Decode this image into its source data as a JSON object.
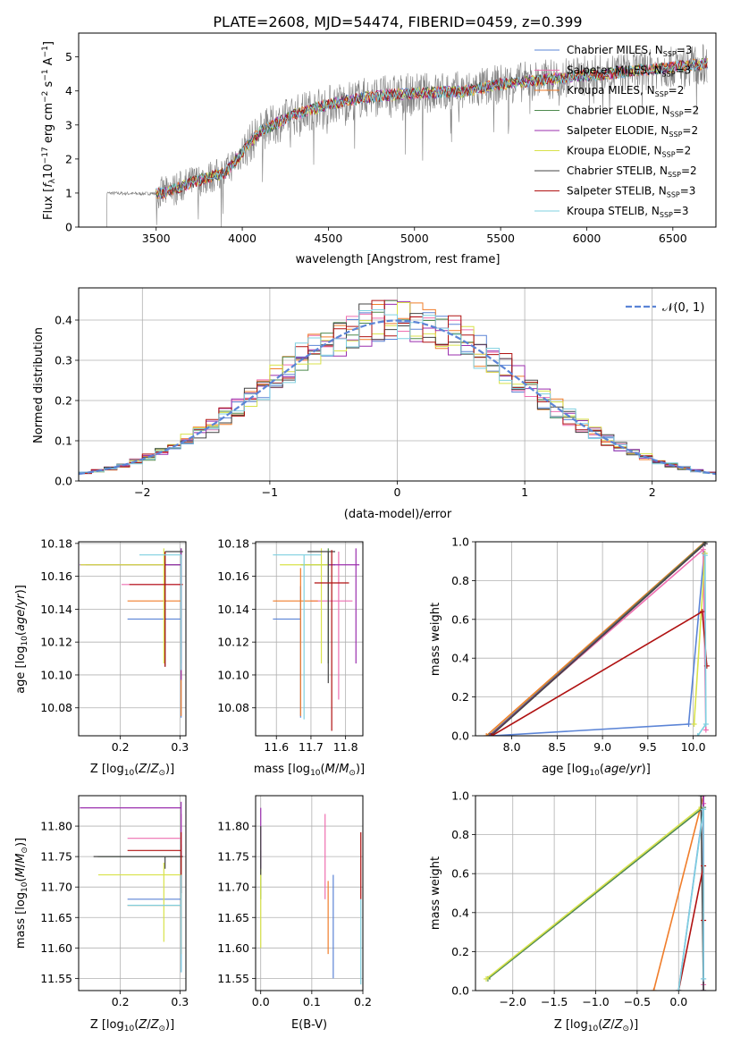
{
  "figure_title": "PLATE=2608, MJD=54474, FIBERID=0459, z=0.399",
  "colors": {
    "Chabrier MILES": "#5b84d6",
    "Salpeter MILES": "#ee6fb0",
    "Kroupa MILES": "#f07d2a",
    "Chabrier ELODIE": "#4e8a4e",
    "Salpeter ELODIE": "#9b2fae",
    "Kroupa ELODIE": "#d8e24a",
    "Chabrier STELIB": "#444444",
    "Salpeter STELIB": "#b01212",
    "Kroupa STELIB": "#7fd0e0",
    "data": "#808080",
    "normal": "#5b84d6"
  },
  "chart_data": [
    {
      "id": "spectrum",
      "type": "line",
      "xlabel": "wavelength [Angstrom, rest frame]",
      "ylabel": "Flux [f_λ 10^-17 erg cm^-2 s^-1 A^-1]",
      "xlim": [
        3050,
        6750
      ],
      "ylim": [
        0,
        5.7
      ],
      "xticks": [
        3500,
        4000,
        4500,
        5000,
        5500,
        6000,
        6500
      ],
      "yticks": [
        0,
        1,
        2,
        3,
        4,
        5
      ],
      "data_range": [
        3200,
        6700
      ],
      "model_range": [
        3500,
        6700
      ],
      "continuum": {
        "x": [
          3200,
          3400,
          3550,
          3700,
          3900,
          4100,
          4300,
          4500,
          4700,
          4900,
          5100,
          5300,
          5500,
          5700,
          5900,
          6100,
          6300,
          6500,
          6700
        ],
        "y": [
          1.0,
          0.98,
          1.0,
          1.3,
          1.6,
          2.8,
          3.3,
          3.6,
          3.8,
          3.9,
          3.95,
          4.0,
          4.2,
          4.3,
          4.4,
          4.5,
          4.6,
          4.7,
          4.8
        ]
      },
      "legend": [
        {
          "name": "Chabrier MILES",
          "nssp": "3"
        },
        {
          "name": "Salpeter MILES",
          "nssp": "3"
        },
        {
          "name": "Kroupa MILES",
          "nssp": "2"
        },
        {
          "name": "Chabrier ELODIE",
          "nssp": "2"
        },
        {
          "name": "Salpeter ELODIE",
          "nssp": "2"
        },
        {
          "name": "Kroupa ELODIE",
          "nssp": "2"
        },
        {
          "name": "Chabrier STELIB",
          "nssp": "2"
        },
        {
          "name": "Salpeter STELIB",
          "nssp": "3"
        },
        {
          "name": "Kroupa STELIB",
          "nssp": "3"
        }
      ],
      "legend_position": "top-right"
    },
    {
      "id": "residuals",
      "type": "line",
      "xlabel": "(data-model)/error",
      "ylabel": "Normed distribution",
      "xlim": [
        -2.5,
        2.5
      ],
      "ylim": [
        0,
        0.48
      ],
      "xticks": [
        -2,
        -1,
        0,
        1,
        2
      ],
      "yticks": [
        0.0,
        0.1,
        0.2,
        0.3,
        0.4
      ],
      "bin_width": 0.1,
      "normal_label": "𝒩(0, 1)",
      "grid": true,
      "legend_position": "top-right"
    },
    {
      "id": "age_vs_Z",
      "type": "scatter",
      "xlabel": "Z [log10(Z/Z⊙)]",
      "ylabel": "age  [log10(age/yr)]",
      "xlim": [
        0.13,
        0.31
      ],
      "ylim": [
        10.063,
        10.181
      ],
      "xticks": [
        0.2,
        0.3
      ],
      "yticks": [
        10.08,
        10.1,
        10.12,
        10.14,
        10.16,
        10.18
      ],
      "grid": true,
      "points": [
        {
          "series": "Chabrier MILES",
          "x": 0.302,
          "xerr": [
            0.09,
            0.0
          ],
          "y": 10.134,
          "yerr": [
            0.06,
            0.02
          ]
        },
        {
          "series": "Salpeter MILES",
          "x": 0.302,
          "xerr": [
            0.1,
            0.0
          ],
          "y": 10.155,
          "yerr": [
            0.05,
            0.02
          ]
        },
        {
          "series": "Kroupa MILES",
          "x": 0.302,
          "xerr": [
            0.09,
            0.0
          ],
          "y": 10.145,
          "yerr": [
            0.07,
            0.02
          ]
        },
        {
          "series": "Chabrier ELODIE",
          "x": 0.302,
          "xerr": [
            0.16,
            0.0
          ],
          "y": 10.167,
          "yerr": [
            0.06,
            0.01
          ]
        },
        {
          "series": "Salpeter ELODIE",
          "x": 0.302,
          "xerr": [
            0.17,
            0.0
          ],
          "y": 10.167,
          "yerr": [
            0.07,
            0.01
          ]
        },
        {
          "series": "Kroupa ELODIE",
          "x": 0.273,
          "xerr": [
            0.14,
            0.0
          ],
          "y": 10.167,
          "yerr": [
            0.06,
            0.01
          ]
        },
        {
          "series": "Chabrier STELIB",
          "x": 0.275,
          "xerr": [
            0.0,
            0.03
          ],
          "y": 10.175,
          "yerr": [
            0.07,
            0.0
          ]
        },
        {
          "series": "Salpeter STELIB",
          "x": 0.275,
          "xerr": [
            0.06,
            0.03
          ],
          "y": 10.155,
          "yerr": [
            0.05,
            0.02
          ]
        },
        {
          "series": "Kroupa STELIB",
          "x": 0.302,
          "xerr": [
            0.07,
            0.0
          ],
          "y": 10.173,
          "yerr": [
            0.07,
            0.0
          ]
        }
      ]
    },
    {
      "id": "age_vs_mass",
      "type": "scatter",
      "xlabel": "mass [log10(M/M⊙)]",
      "ylabel": "",
      "xlim": [
        11.54,
        11.85
      ],
      "ylim": [
        10.063,
        10.181
      ],
      "xticks": [
        11.6,
        11.7,
        11.8
      ],
      "yticks": [
        10.08,
        10.1,
        10.12,
        10.14,
        10.16,
        10.18
      ],
      "grid": true,
      "points": [
        {
          "series": "Chabrier MILES",
          "x": 11.67,
          "xerr": [
            0.08,
            0.0
          ],
          "y": 10.134,
          "yerr": [
            0.06,
            0.02
          ]
        },
        {
          "series": "Salpeter MILES",
          "x": 11.78,
          "xerr": [
            0.08,
            0.04
          ],
          "y": 10.145,
          "yerr": [
            0.06,
            0.03
          ]
        },
        {
          "series": "Kroupa MILES",
          "x": 11.67,
          "xerr": [
            0.08,
            0.05
          ],
          "y": 10.145,
          "yerr": [
            0.07,
            0.02
          ]
        },
        {
          "series": "Chabrier ELODIE",
          "x": 11.75,
          "xerr": [
            0.08,
            0.02
          ],
          "y": 10.167,
          "yerr": [
            0.06,
            0.01
          ]
        },
        {
          "series": "Salpeter ELODIE",
          "x": 11.83,
          "xerr": [
            0.08,
            0.01
          ],
          "y": 10.167,
          "yerr": [
            0.06,
            0.01
          ]
        },
        {
          "series": "Kroupa ELODIE",
          "x": 11.73,
          "xerr": [
            0.12,
            0.02
          ],
          "y": 10.167,
          "yerr": [
            0.06,
            0.01
          ]
        },
        {
          "series": "Chabrier STELIB",
          "x": 11.75,
          "xerr": [
            0.06,
            0.02
          ],
          "y": 10.175,
          "yerr": [
            0.08,
            0.0
          ]
        },
        {
          "series": "Salpeter STELIB",
          "x": 11.76,
          "xerr": [
            0.05,
            0.05
          ],
          "y": 10.156,
          "yerr": [
            0.09,
            0.02
          ]
        },
        {
          "series": "Kroupa STELIB",
          "x": 11.68,
          "xerr": [
            0.09,
            0.05
          ],
          "y": 10.173,
          "yerr": [
            0.1,
            0.0
          ]
        }
      ]
    },
    {
      "id": "weight_vs_age",
      "type": "line",
      "xlabel": "age  [log10(age/yr)]",
      "ylabel": "mass weight",
      "xlim": [
        7.6,
        10.25
      ],
      "ylim": [
        0,
        1.0
      ],
      "xticks": [
        8.0,
        8.5,
        9.0,
        9.5,
        10.0
      ],
      "yticks": [
        0.0,
        0.2,
        0.4,
        0.6,
        0.8,
        1.0
      ],
      "grid": true,
      "series": [
        {
          "name": "Chabrier MILES",
          "x": [
            7.78,
            9.95,
            10.12
          ],
          "y": [
            0.0,
            0.06,
            0.94
          ]
        },
        {
          "name": "Salpeter MILES",
          "x": [
            7.75,
            10.11,
            10.14
          ],
          "y": [
            0.0,
            0.96,
            0.03
          ]
        },
        {
          "name": "Kroupa MILES",
          "x": [
            7.72,
            10.13
          ],
          "y": [
            0.0,
            1.0
          ]
        },
        {
          "name": "Chabrier ELODIE",
          "x": [
            7.75,
            10.14
          ],
          "y": [
            0.0,
            1.0
          ]
        },
        {
          "name": "Salpeter ELODIE",
          "x": [
            7.76,
            10.13
          ],
          "y": [
            0.0,
            0.99
          ]
        },
        {
          "name": "Kroupa ELODIE",
          "x": [
            10.01,
            10.13
          ],
          "y": [
            0.06,
            0.94
          ]
        },
        {
          "name": "Chabrier STELIB",
          "x": [
            7.77,
            10.13
          ],
          "y": [
            0.0,
            0.99
          ]
        },
        {
          "name": "Salpeter STELIB",
          "x": [
            7.78,
            10.1,
            10.15
          ],
          "y": [
            0.0,
            0.64,
            0.36
          ]
        },
        {
          "name": "Kroupa STELIB",
          "x": [
            10.05,
            10.14,
            10.13
          ],
          "y": [
            0.0,
            0.06,
            0.93
          ]
        }
      ]
    },
    {
      "id": "mass_vs_Z",
      "type": "scatter",
      "xlabel": "Z [log10(Z/Z⊙)]",
      "ylabel": "mass [log10(M/M⊙)]",
      "xlim": [
        0.13,
        0.31
      ],
      "ylim": [
        11.53,
        11.85
      ],
      "xticks": [
        0.2,
        0.3
      ],
      "yticks": [
        11.55,
        11.6,
        11.65,
        11.7,
        11.75,
        11.8
      ],
      "grid": true,
      "points": [
        {
          "series": "Chabrier MILES",
          "x": 0.302,
          "xerr": [
            0.09,
            0.0
          ],
          "y": 11.68,
          "yerr": [
            0.12,
            0.04
          ]
        },
        {
          "series": "Salpeter MILES",
          "x": 0.302,
          "xerr": [
            0.09,
            0.0
          ],
          "y": 11.78,
          "yerr": [
            0.08,
            0.04
          ]
        },
        {
          "series": "Kroupa MILES",
          "x": 0.302,
          "xerr": [
            0.09,
            0.0
          ],
          "y": 11.67,
          "yerr": [
            0.08,
            0.05
          ]
        },
        {
          "series": "Chabrier ELODIE",
          "x": 0.302,
          "xerr": [
            0.14,
            0.0
          ],
          "y": 11.75,
          "yerr": [
            0.06,
            0.02
          ]
        },
        {
          "series": "Salpeter ELODIE",
          "x": 0.302,
          "xerr": [
            0.17,
            0.0
          ],
          "y": 11.83,
          "yerr": [
            0.08,
            0.01
          ]
        },
        {
          "series": "Kroupa ELODIE",
          "x": 0.273,
          "xerr": [
            0.11,
            0.03
          ],
          "y": 11.72,
          "yerr": [
            0.11,
            0.02
          ]
        },
        {
          "series": "Chabrier STELIB",
          "x": 0.275,
          "xerr": [
            0.12,
            0.03
          ],
          "y": 11.75,
          "yerr": [
            0.02,
            0.0
          ]
        },
        {
          "series": "Salpeter STELIB",
          "x": 0.302,
          "xerr": [
            0.09,
            0.0
          ],
          "y": 11.76,
          "yerr": [
            0.07,
            0.03
          ]
        },
        {
          "series": "Kroupa STELIB",
          "x": 0.302,
          "xerr": [
            0.09,
            0.0
          ],
          "y": 11.67,
          "yerr": [
            0.11,
            0.05
          ]
        }
      ]
    },
    {
      "id": "mass_vs_ebv",
      "type": "scatter",
      "xlabel": "E(B-V)",
      "ylabel": "",
      "xlim": [
        -0.01,
        0.2
      ],
      "ylim": [
        11.53,
        11.85
      ],
      "xticks": [
        0.0,
        0.1,
        0.2
      ],
      "yticks": [
        11.55,
        11.6,
        11.65,
        11.7,
        11.75,
        11.8
      ],
      "grid": true,
      "points": [
        {
          "series": "Chabrier MILES",
          "x": 0.142,
          "y": 11.63,
          "yerr": [
            0.08,
            0.09
          ]
        },
        {
          "series": "Salpeter MILES",
          "x": 0.126,
          "y": 11.77,
          "yerr": [
            0.09,
            0.05
          ]
        },
        {
          "series": "Kroupa MILES",
          "x": 0.132,
          "y": 11.66,
          "yerr": [
            0.07,
            0.05
          ]
        },
        {
          "series": "Chabrier ELODIE",
          "x": 0.0,
          "y": 11.72,
          "yerr": [
            0.04,
            0.04
          ]
        },
        {
          "series": "Salpeter ELODIE",
          "x": 0.0,
          "y": 11.8,
          "yerr": [
            0.07,
            0.03
          ]
        },
        {
          "series": "Kroupa ELODIE",
          "x": 0.0,
          "y": 11.69,
          "yerr": [
            0.09,
            0.04
          ]
        },
        {
          "series": "Chabrier STELIB",
          "x": 0.0,
          "y": 11.77,
          "yerr": [
            0.05,
            0.03
          ]
        },
        {
          "series": "Salpeter STELIB",
          "x": 0.196,
          "y": 11.75,
          "yerr": [
            0.07,
            0.04
          ]
        },
        {
          "series": "Kroupa STELIB",
          "x": 0.196,
          "y": 11.63,
          "yerr": [
            0.09,
            0.05
          ]
        }
      ]
    },
    {
      "id": "weight_vs_Z",
      "type": "line",
      "xlabel": "Z [log10(Z/Z⊙)]",
      "ylabel": "mass weight",
      "xlim": [
        -2.45,
        0.45
      ],
      "ylim": [
        0,
        1.0
      ],
      "xticks": [
        -2.0,
        -1.5,
        -1.0,
        -0.5,
        0.0
      ],
      "yticks": [
        0.0,
        0.2,
        0.4,
        0.6,
        0.8,
        1.0
      ],
      "grid": true,
      "series": [
        {
          "name": "Chabrier MILES",
          "x": [
            0.0,
            0.3,
            0.3
          ],
          "y": [
            0.0,
            0.94,
            0.06
          ]
        },
        {
          "name": "Salpeter MILES",
          "x": [
            0.3,
            0.3
          ],
          "y": [
            0.03,
            0.96
          ]
        },
        {
          "name": "Kroupa MILES",
          "x": [
            -0.3,
            0.3
          ],
          "y": [
            0.0,
            1.0
          ]
        },
        {
          "name": "Chabrier ELODIE",
          "x": [
            -2.3,
            0.3
          ],
          "y": [
            0.06,
            0.94
          ]
        },
        {
          "name": "Salpeter ELODIE",
          "x": [
            0.3,
            0.3
          ],
          "y": [
            0.0,
            1.0
          ]
        },
        {
          "name": "Kroupa ELODIE",
          "x": [
            -2.32,
            0.27
          ],
          "y": [
            0.06,
            0.94
          ]
        },
        {
          "name": "Chabrier STELIB",
          "x": [
            0.3,
            0.27
          ],
          "y": [
            0.0,
            1.0
          ]
        },
        {
          "name": "Salpeter STELIB",
          "x": [
            0.0,
            0.3,
            0.3
          ],
          "y": [
            0.0,
            0.64,
            0.36
          ]
        },
        {
          "name": "Kroupa STELIB",
          "x": [
            0.0,
            0.3,
            0.3
          ],
          "y": [
            0.0,
            0.93,
            0.06
          ]
        }
      ]
    }
  ]
}
